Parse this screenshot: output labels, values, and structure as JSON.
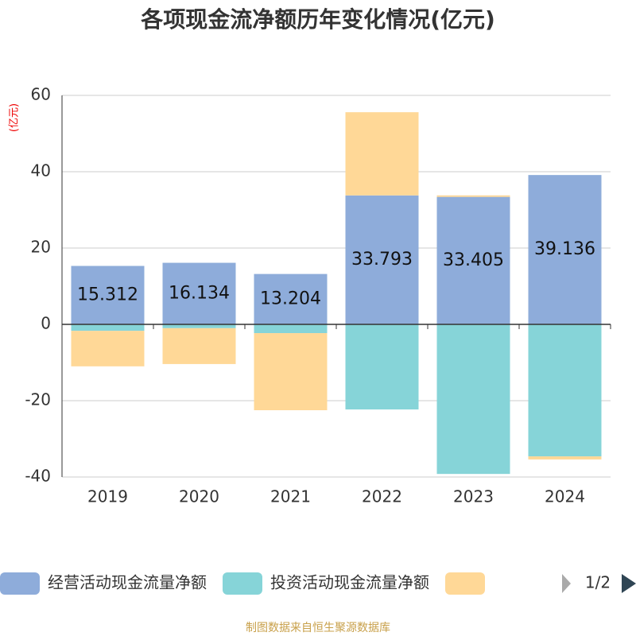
{
  "chart_data": {
    "type": "stacked_bar",
    "title": "各项现金流净额历年变化情况(亿元)",
    "y_unit": "(亿元)",
    "categories": [
      "2019",
      "2020",
      "2021",
      "2022",
      "2023",
      "2024"
    ],
    "series": [
      {
        "name": "经营活动现金流量净额",
        "color": "#8eacda",
        "values": [
          15.312,
          16.134,
          13.204,
          33.793,
          33.405,
          39.136
        ],
        "show_labels": true
      },
      {
        "name": "投资活动现金流量净额",
        "color": "#86d4d8",
        "values": [
          -1.7,
          -1.0,
          -2.3,
          -22.3,
          -39.2,
          -34.6
        ]
      },
      {
        "color": "#ffd897",
        "values": [
          -9.3,
          -9.4,
          -20.2,
          21.8,
          0.4,
          -0.8
        ]
      }
    ],
    "ylim": [
      -40,
      60
    ],
    "yticks": [
      -40,
      -20,
      0,
      20,
      40,
      60
    ],
    "grid": true,
    "legend_pager": "1/2",
    "source": "制图数据来自恒生聚源数据库"
  }
}
